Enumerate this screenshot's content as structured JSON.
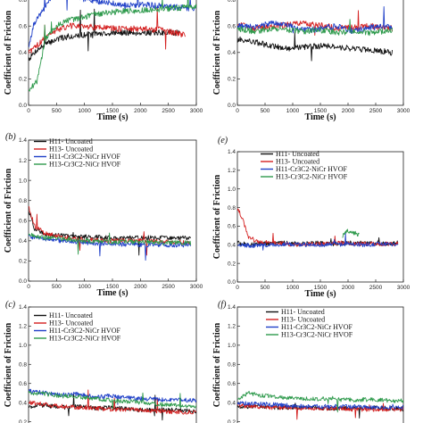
{
  "figure": {
    "bg": "#ffffff"
  },
  "chart_data": [
    {
      "panel": "a",
      "panel_label": "",
      "type": "line",
      "xlabel": "Time (s)",
      "ylabel": "Coefficient of Friction",
      "xlim": [
        0,
        3000
      ],
      "ylim": [
        0,
        1.0
      ],
      "xticks": [
        0,
        500,
        1000,
        1500,
        2000,
        2500,
        3000
      ],
      "yticks": [
        0.0,
        0.2,
        0.4,
        0.6,
        0.8,
        1.0
      ],
      "legend": [
        {
          "name": "H13-Cr3C2-NiCr HVOF",
          "color": "#2e9a4c"
        }
      ],
      "series": [
        {
          "color": "#111111",
          "x": [
            0,
            150,
            300,
            500,
            700,
            900,
            1200,
            1600,
            2000,
            2400,
            2700
          ],
          "y": [
            0.35,
            0.42,
            0.46,
            0.5,
            0.52,
            0.53,
            0.54,
            0.55,
            0.55,
            0.55,
            0.55
          ]
        },
        {
          "color": "#d42020",
          "x": [
            0,
            150,
            300,
            500,
            700,
            900,
            1200,
            1600,
            2000,
            2400,
            2800
          ],
          "y": [
            0.4,
            0.45,
            0.52,
            0.57,
            0.6,
            0.6,
            0.59,
            0.58,
            0.58,
            0.57,
            0.53
          ]
        },
        {
          "color": "#2040c8",
          "x": [
            0,
            100,
            200,
            400,
            600,
            800,
            1000,
            1200,
            1500,
            1800,
            2100,
            2400,
            2700,
            3000
          ],
          "y": [
            0.45,
            0.62,
            0.68,
            0.82,
            0.9,
            0.84,
            0.8,
            0.79,
            0.77,
            0.76,
            0.76,
            0.75,
            0.74,
            0.73
          ]
        },
        {
          "color": "#2e9a4c",
          "x": [
            0,
            150,
            300,
            500,
            700,
            900,
            1200,
            1600,
            2000,
            2400,
            2800,
            3000
          ],
          "y": [
            0.12,
            0.18,
            0.5,
            0.6,
            0.64,
            0.66,
            0.69,
            0.71,
            0.72,
            0.73,
            0.74,
            0.75
          ]
        }
      ]
    },
    {
      "panel": "d",
      "panel_label": "",
      "type": "line",
      "xlabel": "Time (s)",
      "ylabel": "Coefficient of Friction",
      "xlim": [
        0,
        3000
      ],
      "ylim": [
        0,
        1.0
      ],
      "xticks": [
        0,
        500,
        1000,
        1500,
        2000,
        2500,
        3000
      ],
      "yticks": [
        0.0,
        0.2,
        0.4,
        0.6,
        0.8,
        1.0
      ],
      "legend": [
        {
          "name": "H13-Cr3C2-NiCr HVOF",
          "color": "#2e9a4c"
        }
      ],
      "series": [
        {
          "color": "#111111",
          "x": [
            0,
            300,
            600,
            900,
            1200,
            1500,
            1800,
            2100,
            2400,
            2800
          ],
          "y": [
            0.5,
            0.48,
            0.45,
            0.43,
            0.44,
            0.45,
            0.44,
            0.43,
            0.42,
            0.4
          ]
        },
        {
          "color": "#d42020",
          "x": [
            0,
            300,
            600,
            900,
            1200,
            1500,
            1800,
            2100,
            2400,
            2800
          ],
          "y": [
            0.62,
            0.58,
            0.6,
            0.61,
            0.62,
            0.61,
            0.58,
            0.59,
            0.6,
            0.58
          ]
        },
        {
          "color": "#2040c8",
          "x": [
            0,
            300,
            600,
            900,
            1200,
            1500,
            1800,
            2100,
            2400,
            2800
          ],
          "y": [
            0.6,
            0.59,
            0.62,
            0.61,
            0.57,
            0.58,
            0.6,
            0.56,
            0.59,
            0.6
          ]
        },
        {
          "color": "#2e9a4c",
          "x": [
            0,
            300,
            600,
            900,
            1200,
            1500,
            1800,
            2100,
            2400,
            2800
          ],
          "y": [
            0.58,
            0.56,
            0.58,
            0.57,
            0.56,
            0.57,
            0.55,
            0.56,
            0.55,
            0.57
          ]
        }
      ]
    },
    {
      "panel": "b",
      "panel_label": "(b)",
      "type": "line",
      "xlabel": "Time (s)",
      "ylabel": "Coefficient of Friction",
      "xlim": [
        0,
        3000
      ],
      "ylim": [
        0,
        1.4
      ],
      "xticks": [
        0,
        500,
        1000,
        1500,
        2000,
        2500,
        3000
      ],
      "yticks": [
        0.0,
        0.2,
        0.4,
        0.6,
        0.8,
        1.0,
        1.2,
        1.4
      ],
      "legend": [
        {
          "name": "H11- Uncoated",
          "color": "#111111"
        },
        {
          "name": "H13- Uncoated",
          "color": "#d42020"
        },
        {
          "name": "H11-Cr3C2-NiCr HVOF",
          "color": "#2040c8"
        },
        {
          "name": "H13-Cr3C2-NiCr HVOF",
          "color": "#2e9a4c"
        }
      ],
      "series": [
        {
          "color": "#111111",
          "x": [
            0,
            100,
            300,
            600,
            1000,
            1500,
            2000,
            2500,
            2900
          ],
          "y": [
            0.7,
            0.52,
            0.47,
            0.45,
            0.44,
            0.43,
            0.43,
            0.43,
            0.43
          ]
        },
        {
          "color": "#d42020",
          "x": [
            0,
            100,
            300,
            600,
            1000,
            1500,
            2000,
            2500,
            2900
          ],
          "y": [
            0.75,
            0.55,
            0.47,
            0.44,
            0.41,
            0.4,
            0.4,
            0.39,
            0.38
          ]
        },
        {
          "color": "#2040c8",
          "x": [
            0,
            100,
            300,
            600,
            1000,
            1500,
            2000,
            2500,
            2900
          ],
          "y": [
            0.45,
            0.43,
            0.42,
            0.4,
            0.38,
            0.37,
            0.36,
            0.36,
            0.36
          ]
        },
        {
          "color": "#2e9a4c",
          "x": [
            0,
            100,
            300,
            600,
            1000,
            1500,
            2000,
            2500,
            2900
          ],
          "y": [
            0.48,
            0.45,
            0.43,
            0.42,
            0.4,
            0.39,
            0.39,
            0.38,
            0.38
          ]
        }
      ]
    },
    {
      "panel": "e",
      "panel_label": "(e)",
      "type": "line",
      "xlabel": "Time (s)",
      "ylabel": "Coefficient of Friction",
      "xlim": [
        0,
        3000
      ],
      "ylim": [
        0,
        1.4
      ],
      "xticks": [
        0,
        500,
        1000,
        1500,
        2000,
        2500,
        3000
      ],
      "yticks": [
        0.0,
        0.2,
        0.4,
        0.6,
        0.8,
        1.0,
        1.2,
        1.4
      ],
      "legend": [
        {
          "name": "H11- Uncoated",
          "color": "#111111"
        },
        {
          "name": "H13- Uncoated",
          "color": "#d42020"
        },
        {
          "name": "H11-Cr3C2-NiCr HVOF",
          "color": "#2040c8"
        },
        {
          "name": "H13-Cr3C2-NiCr HVOF",
          "color": "#2e9a4c"
        }
      ],
      "series": [
        {
          "color": "#111111",
          "x": [
            0,
            200,
            500,
            800,
            1100,
            1400,
            1700,
            2000,
            2300,
            2600,
            2900
          ],
          "y": [
            0.42,
            0.4,
            0.41,
            0.42,
            0.41,
            0.42,
            0.41,
            0.42,
            0.42,
            0.41,
            0.42
          ]
        },
        {
          "color": "#d42020",
          "x": [
            0,
            80,
            200,
            400,
            700,
            1000,
            1300,
            1600,
            1900,
            2200,
            2500,
            2900
          ],
          "y": [
            0.8,
            0.7,
            0.48,
            0.43,
            0.42,
            0.4,
            0.41,
            0.41,
            0.42,
            0.41,
            0.41,
            0.41
          ]
        },
        {
          "color": "#2040c8",
          "x": [
            0,
            300,
            600,
            900,
            1200,
            1500,
            1800,
            1900,
            2000,
            2300,
            2600,
            2900
          ],
          "y": [
            0.4,
            0.39,
            0.4,
            0.41,
            0.4,
            0.4,
            0.41,
            0.4,
            0.41,
            0.4,
            0.41,
            0.4
          ]
        },
        {
          "color": "#2e9a4c",
          "x": [
            1900,
            1950,
            2000,
            2050,
            2100,
            2150,
            2200
          ],
          "y": [
            0.48,
            0.54,
            0.55,
            0.54,
            0.53,
            0.52,
            0.5
          ]
        }
      ]
    },
    {
      "panel": "c",
      "panel_label": "(c)",
      "type": "line",
      "xlabel": "",
      "ylabel": "Coefficient of Friction",
      "xlim": [
        0,
        3000
      ],
      "ylim": [
        0,
        1.4
      ],
      "xticks": [],
      "yticks": [
        0.2,
        0.4,
        0.6,
        0.8,
        1.0,
        1.2,
        1.4
      ],
      "legend": [
        {
          "name": "H11- Uncoated",
          "color": "#111111"
        },
        {
          "name": "H13- Uncoated",
          "color": "#d42020"
        },
        {
          "name": "H11-Cr3C2-NiCr HVOF",
          "color": "#2040c8"
        },
        {
          "name": "H13-Cr3C2-NiCr HVOF",
          "color": "#2e9a4c"
        }
      ],
      "series": [
        {
          "color": "#111111",
          "x": [
            0,
            300,
            600,
            900,
            1200,
            1500,
            1800,
            2100,
            2400,
            2700,
            3000
          ],
          "y": [
            0.36,
            0.37,
            0.35,
            0.36,
            0.34,
            0.35,
            0.33,
            0.32,
            0.33,
            0.32,
            0.31
          ]
        },
        {
          "color": "#d42020",
          "x": [
            0,
            300,
            600,
            900,
            1200,
            1500,
            1800,
            2100,
            2400,
            2700,
            3000
          ],
          "y": [
            0.4,
            0.38,
            0.36,
            0.35,
            0.34,
            0.33,
            0.33,
            0.32,
            0.31,
            0.3,
            0.3
          ]
        },
        {
          "color": "#2040c8",
          "x": [
            0,
            300,
            600,
            900,
            1200,
            1500,
            1800,
            2100,
            2400,
            2700,
            3000
          ],
          "y": [
            0.52,
            0.5,
            0.48,
            0.49,
            0.46,
            0.47,
            0.45,
            0.44,
            0.43,
            0.43,
            0.42
          ]
        },
        {
          "color": "#2e9a4c",
          "x": [
            0,
            300,
            600,
            900,
            1200,
            1500,
            1800,
            2100,
            2400,
            2700,
            3000
          ],
          "y": [
            0.5,
            0.49,
            0.47,
            0.46,
            0.44,
            0.42,
            0.41,
            0.4,
            0.38,
            0.37,
            0.36
          ]
        }
      ]
    },
    {
      "panel": "f",
      "panel_label": "(f)",
      "type": "line",
      "xlabel": "",
      "ylabel": "Coefficient of Friction",
      "xlim": [
        0,
        3000
      ],
      "ylim": [
        0,
        1.4
      ],
      "xticks": [],
      "yticks": [
        0.2,
        0.4,
        0.6,
        0.8,
        1.0,
        1.2,
        1.4
      ],
      "legend": [
        {
          "name": "H11- Uncoated",
          "color": "#111111"
        },
        {
          "name": "H13- Uncoated",
          "color": "#d42020"
        },
        {
          "name": "H11-Cr3C2-NiCr HVOF",
          "color": "#2040c8"
        },
        {
          "name": "H13-Cr3C2-NiCr HVOF",
          "color": "#2e9a4c"
        }
      ],
      "series": [
        {
          "color": "#111111",
          "x": [
            0,
            300,
            600,
            900,
            1200,
            1500,
            1800,
            2100,
            2400,
            2700,
            3000
          ],
          "y": [
            0.36,
            0.36,
            0.35,
            0.35,
            0.35,
            0.34,
            0.34,
            0.34,
            0.35,
            0.34,
            0.34
          ]
        },
        {
          "color": "#d42020",
          "x": [
            0,
            300,
            600,
            900,
            1200,
            1500,
            1800,
            2100,
            2400,
            2700,
            3000
          ],
          "y": [
            0.37,
            0.36,
            0.35,
            0.35,
            0.34,
            0.34,
            0.34,
            0.33,
            0.33,
            0.33,
            0.33
          ]
        },
        {
          "color": "#2040c8",
          "x": [
            0,
            300,
            600,
            900,
            1200,
            1500,
            1800,
            2100,
            2400,
            2700,
            3000
          ],
          "y": [
            0.4,
            0.39,
            0.38,
            0.37,
            0.36,
            0.36,
            0.36,
            0.36,
            0.35,
            0.35,
            0.35
          ]
        },
        {
          "color": "#2e9a4c",
          "x": [
            0,
            200,
            400,
            700,
            1000,
            1300,
            1600,
            1900,
            2200,
            2500,
            2800,
            3000
          ],
          "y": [
            0.44,
            0.5,
            0.48,
            0.46,
            0.45,
            0.44,
            0.44,
            0.43,
            0.43,
            0.43,
            0.42,
            0.42
          ]
        }
      ]
    }
  ]
}
